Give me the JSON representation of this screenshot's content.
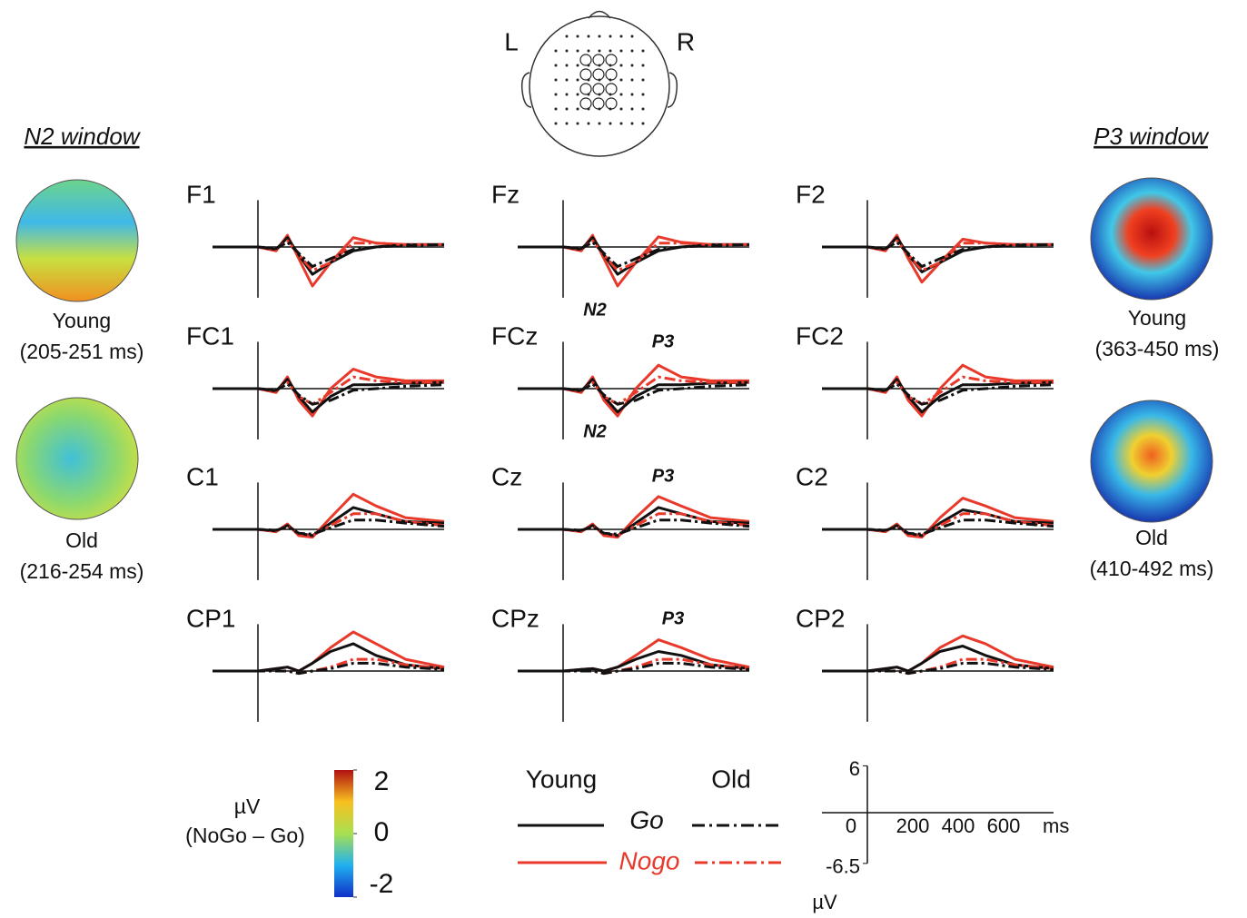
{
  "head": {
    "left": "L",
    "right": "R"
  },
  "n2": {
    "title": "N2 window",
    "maps": [
      {
        "group": "Young",
        "window": "(205-251 ms)"
      },
      {
        "group": "Old",
        "window": "(216-254 ms)"
      }
    ]
  },
  "p3": {
    "title": "P3 window",
    "maps": [
      {
        "group": "Young",
        "window": "(363-450 ms)"
      },
      {
        "group": "Old",
        "window": "(410-492 ms)"
      }
    ]
  },
  "colorbar": {
    "unit": "µV",
    "label": "(NoGo – Go)",
    "range": [
      -2,
      2
    ],
    "ticks": [
      2,
      0,
      -2
    ]
  },
  "legend": {
    "young": "Young",
    "old": "Old",
    "go": "Go",
    "nogo": "Nogo"
  },
  "scale": {
    "xlim": [
      0,
      820
    ],
    "ylim": [
      -6.5,
      6
    ],
    "yticks": [
      6,
      0,
      -6.5
    ],
    "xticks": [
      0,
      200,
      400,
      600
    ],
    "xunit": "ms",
    "yunit": "µV"
  },
  "chart_data": [
    {
      "type": "line",
      "title": "F1",
      "x": [
        -200,
        0,
        80,
        130,
        180,
        240,
        320,
        420,
        520,
        650,
        820
      ],
      "xlim": [
        -200,
        820
      ],
      "ylim": [
        -6.5,
        6
      ],
      "annotations": [],
      "series": [
        {
          "color": "#e8392b",
          "dash": false,
          "values": [
            0,
            0,
            -0.5,
            1.5,
            -1.5,
            -5,
            -2,
            1.2,
            0.5,
            0.3,
            0.3
          ]
        },
        {
          "color": "#111111",
          "dash": false,
          "values": [
            0,
            0,
            -0.3,
            1.2,
            -1,
            -3.5,
            -2,
            -0.5,
            0,
            0.3,
            0.3
          ]
        },
        {
          "color": "#e8392b",
          "dash": true,
          "values": [
            0,
            0,
            -0.3,
            0.8,
            -1,
            -3,
            -2,
            0.5,
            0.5,
            0.3,
            0.3
          ]
        },
        {
          "color": "#111111",
          "dash": true,
          "values": [
            0,
            0,
            -0.2,
            0.6,
            -0.8,
            -2.5,
            -1.5,
            -0.3,
            0,
            0.2,
            0.3
          ]
        }
      ]
    },
    {
      "type": "line",
      "title": "Fz",
      "x": [
        -200,
        0,
        80,
        130,
        180,
        240,
        320,
        420,
        520,
        650,
        820
      ],
      "xlim": [
        -200,
        820
      ],
      "ylim": [
        -6.5,
        6
      ],
      "annotations": [
        "N2"
      ],
      "series": [
        {
          "color": "#e8392b",
          "dash": false,
          "values": [
            0,
            0,
            -0.5,
            1.5,
            -1.5,
            -5,
            -2,
            1.3,
            0.6,
            0.3,
            0.3
          ]
        },
        {
          "color": "#111111",
          "dash": false,
          "values": [
            0,
            0,
            -0.3,
            1.2,
            -1,
            -3.5,
            -2,
            -0.5,
            0,
            0.3,
            0.3
          ]
        },
        {
          "color": "#e8392b",
          "dash": true,
          "values": [
            0,
            0,
            -0.3,
            0.8,
            -1,
            -3,
            -2,
            0.5,
            0.5,
            0.3,
            0.3
          ]
        },
        {
          "color": "#111111",
          "dash": true,
          "values": [
            0,
            0,
            -0.2,
            0.6,
            -0.8,
            -2.5,
            -1.5,
            -0.3,
            0,
            0.2,
            0.3
          ]
        }
      ]
    },
    {
      "type": "line",
      "title": "F2",
      "x": [
        -200,
        0,
        80,
        130,
        180,
        240,
        320,
        420,
        520,
        650,
        820
      ],
      "xlim": [
        -200,
        820
      ],
      "ylim": [
        -6.5,
        6
      ],
      "annotations": [],
      "series": [
        {
          "color": "#e8392b",
          "dash": false,
          "values": [
            0,
            0,
            -0.5,
            1.5,
            -1.5,
            -4.5,
            -2,
            1,
            0.5,
            0.3,
            0.3
          ]
        },
        {
          "color": "#111111",
          "dash": false,
          "values": [
            0,
            0,
            -0.3,
            1.2,
            -1,
            -3.2,
            -2,
            -0.5,
            0,
            0.3,
            0.3
          ]
        },
        {
          "color": "#e8392b",
          "dash": true,
          "values": [
            0,
            0,
            -0.3,
            0.8,
            -1,
            -3,
            -2,
            0.5,
            0.5,
            0.3,
            0.3
          ]
        },
        {
          "color": "#111111",
          "dash": true,
          "values": [
            0,
            0,
            -0.2,
            0.6,
            -0.8,
            -2.5,
            -1.5,
            -0.3,
            0,
            0.2,
            0.3
          ]
        }
      ]
    },
    {
      "type": "line",
      "title": "FC1",
      "x": [
        -200,
        0,
        80,
        130,
        180,
        240,
        320,
        420,
        520,
        650,
        820
      ],
      "xlim": [
        -200,
        820
      ],
      "ylim": [
        -6.5,
        6
      ],
      "annotations": [],
      "series": [
        {
          "color": "#e8392b",
          "dash": false,
          "values": [
            0,
            0,
            -0.5,
            1.5,
            -1.5,
            -3.5,
            0,
            2.5,
            1.5,
            1,
            1
          ]
        },
        {
          "color": "#111111",
          "dash": false,
          "values": [
            0,
            0,
            -0.3,
            1.2,
            -1,
            -3,
            -1,
            0.5,
            0.5,
            0.7,
            0.8
          ]
        },
        {
          "color": "#e8392b",
          "dash": true,
          "values": [
            0,
            0,
            -0.3,
            0.8,
            -1,
            -2,
            -0.5,
            1.5,
            1,
            0.8,
            0.8
          ]
        },
        {
          "color": "#111111",
          "dash": true,
          "values": [
            0,
            0,
            -0.2,
            0.6,
            -0.8,
            -2,
            -1.5,
            -0.2,
            0,
            0.3,
            0.5
          ]
        }
      ]
    },
    {
      "type": "line",
      "title": "FCz",
      "x": [
        -200,
        0,
        80,
        130,
        180,
        240,
        320,
        420,
        520,
        650,
        820
      ],
      "xlim": [
        -200,
        820
      ],
      "ylim": [
        -6.5,
        6
      ],
      "annotations": [
        "P3",
        "N2"
      ],
      "series": [
        {
          "color": "#e8392b",
          "dash": false,
          "values": [
            0,
            0,
            -0.5,
            1.5,
            -1.5,
            -3.5,
            0,
            3,
            1.5,
            1,
            1
          ]
        },
        {
          "color": "#111111",
          "dash": false,
          "values": [
            0,
            0,
            -0.3,
            1.2,
            -1,
            -3,
            -1,
            0.5,
            0.5,
            0.7,
            0.8
          ]
        },
        {
          "color": "#e8392b",
          "dash": true,
          "values": [
            0,
            0,
            -0.3,
            0.8,
            -1,
            -2,
            -0.5,
            1.5,
            1,
            0.8,
            0.8
          ]
        },
        {
          "color": "#111111",
          "dash": true,
          "values": [
            0,
            0,
            -0.2,
            0.6,
            -0.8,
            -2,
            -1.5,
            -0.2,
            0,
            0.3,
            0.5
          ]
        }
      ]
    },
    {
      "type": "line",
      "title": "FC2",
      "x": [
        -200,
        0,
        80,
        130,
        180,
        240,
        320,
        420,
        520,
        650,
        820
      ],
      "xlim": [
        -200,
        820
      ],
      "ylim": [
        -6.5,
        6
      ],
      "annotations": [],
      "series": [
        {
          "color": "#e8392b",
          "dash": false,
          "values": [
            0,
            0,
            -0.5,
            1.5,
            -1.5,
            -3.5,
            0,
            3,
            1.5,
            1,
            1
          ]
        },
        {
          "color": "#111111",
          "dash": false,
          "values": [
            0,
            0,
            -0.3,
            1.2,
            -1,
            -3,
            -1,
            0.5,
            0.5,
            0.7,
            0.8
          ]
        },
        {
          "color": "#e8392b",
          "dash": true,
          "values": [
            0,
            0,
            -0.3,
            0.8,
            -1,
            -2,
            -0.5,
            1.5,
            1,
            0.8,
            0.8
          ]
        },
        {
          "color": "#111111",
          "dash": true,
          "values": [
            0,
            0,
            -0.2,
            0.6,
            -0.8,
            -2,
            -1.5,
            -0.2,
            0,
            0.3,
            0.5
          ]
        }
      ]
    },
    {
      "type": "line",
      "title": "C1",
      "x": [
        -200,
        0,
        80,
        130,
        180,
        240,
        320,
        420,
        520,
        650,
        820
      ],
      "xlim": [
        -200,
        820
      ],
      "ylim": [
        -6.5,
        6
      ],
      "annotations": [],
      "series": [
        {
          "color": "#e8392b",
          "dash": false,
          "values": [
            0,
            0,
            -0.3,
            0.7,
            -0.8,
            -1,
            1.5,
            4.5,
            3,
            1.5,
            1
          ]
        },
        {
          "color": "#111111",
          "dash": false,
          "values": [
            0,
            0,
            -0.2,
            0.5,
            -0.5,
            -0.8,
            0.8,
            2.8,
            2,
            1,
            0.8
          ]
        },
        {
          "color": "#e8392b",
          "dash": true,
          "values": [
            0,
            0,
            -0.2,
            0.4,
            -0.6,
            -0.8,
            0.5,
            2,
            2,
            1,
            0.5
          ]
        },
        {
          "color": "#111111",
          "dash": true,
          "values": [
            0,
            0,
            -0.1,
            0.3,
            -0.5,
            -0.6,
            0.2,
            1.2,
            1.2,
            0.8,
            0.4
          ]
        }
      ]
    },
    {
      "type": "line",
      "title": "Cz",
      "x": [
        -200,
        0,
        80,
        130,
        180,
        240,
        320,
        420,
        520,
        650,
        820
      ],
      "xlim": [
        -200,
        820
      ],
      "ylim": [
        -6.5,
        6
      ],
      "annotations": [
        "P3"
      ],
      "series": [
        {
          "color": "#e8392b",
          "dash": false,
          "values": [
            0,
            0,
            -0.3,
            0.7,
            -0.8,
            -1,
            1.5,
            4.2,
            3,
            1.5,
            1
          ]
        },
        {
          "color": "#111111",
          "dash": false,
          "values": [
            0,
            0,
            -0.2,
            0.5,
            -0.5,
            -0.8,
            0.8,
            2.8,
            2,
            1,
            0.8
          ]
        },
        {
          "color": "#e8392b",
          "dash": true,
          "values": [
            0,
            0,
            -0.2,
            0.4,
            -0.6,
            -0.8,
            0.5,
            2,
            2,
            1,
            0.5
          ]
        },
        {
          "color": "#111111",
          "dash": true,
          "values": [
            0,
            0,
            -0.1,
            0.3,
            -0.5,
            -0.6,
            0.2,
            1.2,
            1.2,
            0.8,
            0.4
          ]
        }
      ]
    },
    {
      "type": "line",
      "title": "C2",
      "x": [
        -200,
        0,
        80,
        130,
        180,
        240,
        320,
        420,
        520,
        650,
        820
      ],
      "xlim": [
        -200,
        820
      ],
      "ylim": [
        -6.5,
        6
      ],
      "annotations": [],
      "series": [
        {
          "color": "#e8392b",
          "dash": false,
          "values": [
            0,
            0,
            -0.3,
            0.7,
            -0.8,
            -1,
            1.5,
            4,
            3,
            1.5,
            1
          ]
        },
        {
          "color": "#111111",
          "dash": false,
          "values": [
            0,
            0,
            -0.2,
            0.5,
            -0.5,
            -0.8,
            0.8,
            2.5,
            2,
            1,
            0.8
          ]
        },
        {
          "color": "#e8392b",
          "dash": true,
          "values": [
            0,
            0,
            -0.2,
            0.4,
            -0.6,
            -0.8,
            0.5,
            2,
            2,
            1,
            0.5
          ]
        },
        {
          "color": "#111111",
          "dash": true,
          "values": [
            0,
            0,
            -0.1,
            0.3,
            -0.5,
            -0.6,
            0.2,
            1.2,
            1.2,
            0.8,
            0.4
          ]
        }
      ]
    },
    {
      "type": "line",
      "title": "CP1",
      "x": [
        -200,
        0,
        80,
        130,
        180,
        240,
        320,
        420,
        520,
        650,
        820
      ],
      "xlim": [
        -200,
        820
      ],
      "ylim": [
        -6.5,
        6
      ],
      "annotations": [],
      "series": [
        {
          "color": "#e8392b",
          "dash": false,
          "values": [
            0,
            0,
            0.3,
            0.5,
            0,
            1,
            3,
            5,
            3.5,
            1.5,
            0.5
          ]
        },
        {
          "color": "#111111",
          "dash": false,
          "values": [
            0,
            0,
            0.3,
            0.5,
            0,
            1,
            2.5,
            3.5,
            2,
            0.8,
            0.3
          ]
        },
        {
          "color": "#e8392b",
          "dash": true,
          "values": [
            0,
            0,
            0,
            0,
            -0.3,
            0,
            0.5,
            1.5,
            1.5,
            0.8,
            0.3
          ]
        },
        {
          "color": "#111111",
          "dash": true,
          "values": [
            0,
            0,
            0,
            0,
            -0.3,
            0,
            0.3,
            1,
            1,
            0.5,
            0.2
          ]
        }
      ]
    },
    {
      "type": "line",
      "title": "CPz",
      "x": [
        -200,
        0,
        80,
        130,
        180,
        240,
        320,
        420,
        520,
        650,
        820
      ],
      "xlim": [
        -200,
        820
      ],
      "ylim": [
        -6.5,
        6
      ],
      "annotations": [
        "P3"
      ],
      "series": [
        {
          "color": "#e8392b",
          "dash": false,
          "values": [
            0,
            0,
            0.2,
            0.3,
            0,
            0.5,
            2,
            4,
            3,
            1.5,
            0.5
          ]
        },
        {
          "color": "#111111",
          "dash": false,
          "values": [
            0,
            0,
            0.2,
            0.3,
            0,
            0.5,
            1.5,
            2.5,
            2,
            0.8,
            0.3
          ]
        },
        {
          "color": "#e8392b",
          "dash": true,
          "values": [
            0,
            0,
            0,
            0,
            -0.3,
            0,
            0.5,
            1.5,
            1.5,
            0.8,
            0.3
          ]
        },
        {
          "color": "#111111",
          "dash": true,
          "values": [
            0,
            0,
            0,
            0,
            -0.3,
            0,
            0.3,
            1,
            1,
            0.5,
            0.2
          ]
        }
      ]
    },
    {
      "type": "line",
      "title": "CP2",
      "x": [
        -200,
        0,
        80,
        130,
        180,
        240,
        320,
        420,
        520,
        650,
        820
      ],
      "xlim": [
        -200,
        820
      ],
      "ylim": [
        -6.5,
        6
      ],
      "annotations": [],
      "series": [
        {
          "color": "#e8392b",
          "dash": false,
          "values": [
            0,
            0,
            0.3,
            0.5,
            0,
            1,
            3,
            4.5,
            3.5,
            1.5,
            0.5
          ]
        },
        {
          "color": "#111111",
          "dash": false,
          "values": [
            0,
            0,
            0.3,
            0.5,
            0,
            1,
            2.5,
            3.2,
            2,
            0.8,
            0.3
          ]
        },
        {
          "color": "#e8392b",
          "dash": true,
          "values": [
            0,
            0,
            0,
            0,
            -0.3,
            0,
            0.5,
            1.5,
            1.5,
            0.8,
            0.3
          ]
        },
        {
          "color": "#111111",
          "dash": true,
          "values": [
            0,
            0,
            0,
            0,
            -0.3,
            0,
            0.3,
            1,
            1,
            0.5,
            0.2
          ]
        }
      ]
    }
  ]
}
